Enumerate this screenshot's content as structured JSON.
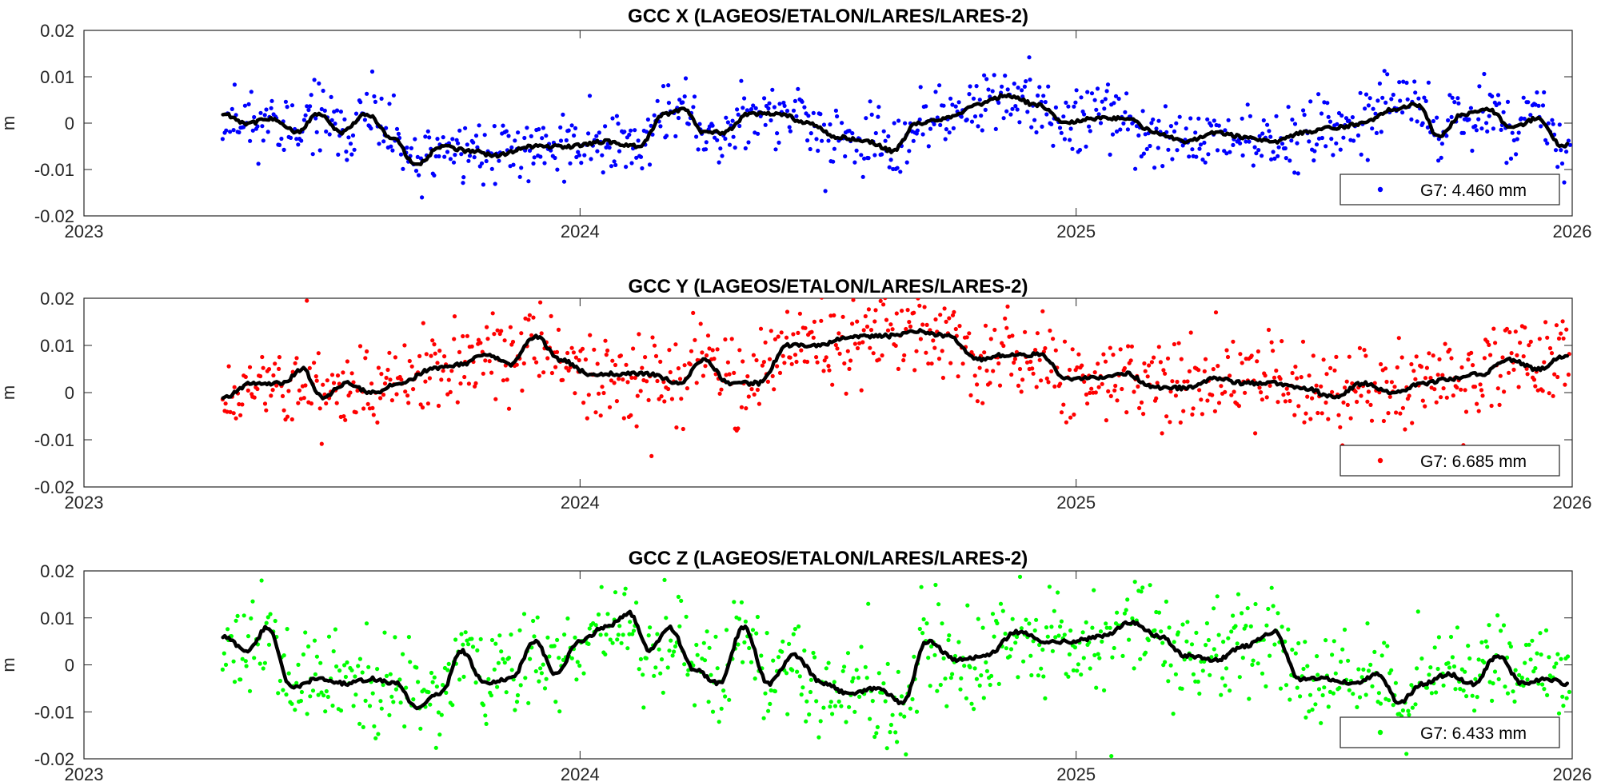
{
  "chart_data": [
    {
      "type": "scatter",
      "title": "GCC X (LAGEOS/ETALON/LARES/LARES-2)",
      "ylabel": "m",
      "xlabel": "",
      "xlim": [
        2023,
        2026
      ],
      "ylim": [
        -0.02,
        0.02
      ],
      "xticks": [
        "2023",
        "2024",
        "2025",
        "2026"
      ],
      "yticks": [
        "0.02",
        "0.01",
        "0",
        "-0.01",
        "-0.02"
      ],
      "legend": {
        "text": "G7: 4.460 mm",
        "placement": "bottom-right"
      },
      "point_color": "#0000ff",
      "smooth_color": "#000000",
      "x_start": 2023.28,
      "x_end": 2025.99,
      "series": [
        {
          "name": "G7: 4.460 mm",
          "kind": "points"
        },
        {
          "kind": "smoothed line",
          "anchors": [
            [
              2023.28,
              0.002
            ],
            [
              2023.33,
              0.0
            ],
            [
              2023.38,
              0.001
            ],
            [
              2023.43,
              -0.002
            ],
            [
              2023.47,
              0.002
            ],
            [
              2023.52,
              -0.002
            ],
            [
              2023.57,
              0.002
            ],
            [
              2023.62,
              -0.003
            ],
            [
              2023.67,
              -0.009
            ],
            [
              2023.72,
              -0.005
            ],
            [
              2023.78,
              -0.006
            ],
            [
              2023.83,
              -0.007
            ],
            [
              2023.9,
              -0.005
            ],
            [
              2023.98,
              -0.005
            ],
            [
              2024.05,
              -0.004
            ],
            [
              2024.12,
              -0.005
            ],
            [
              2024.17,
              0.002
            ],
            [
              2024.21,
              0.003
            ],
            [
              2024.25,
              -0.002
            ],
            [
              2024.29,
              -0.002
            ],
            [
              2024.34,
              0.002
            ],
            [
              2024.4,
              0.002
            ],
            [
              2024.46,
              0.0
            ],
            [
              2024.52,
              -0.003
            ],
            [
              2024.58,
              -0.004
            ],
            [
              2024.63,
              -0.006
            ],
            [
              2024.68,
              0.0
            ],
            [
              2024.74,
              0.001
            ],
            [
              2024.8,
              0.004
            ],
            [
              2024.86,
              0.006
            ],
            [
              2024.92,
              0.004
            ],
            [
              2024.98,
              0.0
            ],
            [
              2025.04,
              0.001
            ],
            [
              2025.1,
              0.001
            ],
            [
              2025.16,
              -0.002
            ],
            [
              2025.22,
              -0.004
            ],
            [
              2025.28,
              -0.002
            ],
            [
              2025.34,
              -0.003
            ],
            [
              2025.4,
              -0.004
            ],
            [
              2025.46,
              -0.002
            ],
            [
              2025.52,
              -0.001
            ],
            [
              2025.58,
              0.0
            ],
            [
              2025.64,
              0.003
            ],
            [
              2025.69,
              0.004
            ],
            [
              2025.73,
              -0.003
            ],
            [
              2025.78,
              0.002
            ],
            [
              2025.83,
              0.003
            ],
            [
              2025.88,
              -0.001
            ],
            [
              2025.93,
              0.001
            ],
            [
              2025.98,
              -0.005
            ],
            [
              2026.03,
              -0.001
            ],
            [
              2026.08,
              -0.003
            ]
          ]
        }
      ]
    },
    {
      "type": "scatter",
      "title": "GCC Y (LAGEOS/ETALON/LARES/LARES-2)",
      "ylabel": "m",
      "xlabel": "",
      "xlim": [
        2023,
        2026
      ],
      "ylim": [
        -0.02,
        0.02
      ],
      "xticks": [
        "2023",
        "2024",
        "2025",
        "2026"
      ],
      "yticks": [
        "0.02",
        "0.01",
        "0",
        "-0.01",
        "-0.02"
      ],
      "legend": {
        "text": "G7: 6.685 mm",
        "placement": "bottom-right"
      },
      "point_color": "#ff0000",
      "smooth_color": "#000000",
      "series": [
        {
          "name": "G7: 6.685 mm",
          "kind": "points"
        },
        {
          "kind": "smoothed line",
          "anchors": [
            [
              2023.28,
              -0.001
            ],
            [
              2023.34,
              0.002
            ],
            [
              2023.4,
              0.002
            ],
            [
              2023.44,
              0.005
            ],
            [
              2023.48,
              -0.001
            ],
            [
              2023.53,
              0.002
            ],
            [
              2023.58,
              0.0
            ],
            [
              2023.64,
              0.002
            ],
            [
              2023.7,
              0.005
            ],
            [
              2023.76,
              0.006
            ],
            [
              2023.81,
              0.008
            ],
            [
              2023.86,
              0.006
            ],
            [
              2023.91,
              0.012
            ],
            [
              2023.96,
              0.007
            ],
            [
              2024.02,
              0.004
            ],
            [
              2024.08,
              0.004
            ],
            [
              2024.14,
              0.004
            ],
            [
              2024.2,
              0.002
            ],
            [
              2024.25,
              0.007
            ],
            [
              2024.3,
              0.002
            ],
            [
              2024.36,
              0.002
            ],
            [
              2024.42,
              0.01
            ],
            [
              2024.48,
              0.01
            ],
            [
              2024.55,
              0.012
            ],
            [
              2024.62,
              0.012
            ],
            [
              2024.68,
              0.013
            ],
            [
              2024.74,
              0.012
            ],
            [
              2024.8,
              0.007
            ],
            [
              2024.86,
              0.008
            ],
            [
              2024.93,
              0.008
            ],
            [
              2024.98,
              0.003
            ],
            [
              2025.04,
              0.003
            ],
            [
              2025.1,
              0.004
            ],
            [
              2025.16,
              0.001
            ],
            [
              2025.22,
              0.001
            ],
            [
              2025.28,
              0.003
            ],
            [
              2025.34,
              0.002
            ],
            [
              2025.4,
              0.002
            ],
            [
              2025.46,
              0.001
            ],
            [
              2025.52,
              -0.001
            ],
            [
              2025.58,
              0.002
            ],
            [
              2025.64,
              0.0
            ],
            [
              2025.7,
              0.002
            ],
            [
              2025.76,
              0.003
            ],
            [
              2025.82,
              0.004
            ],
            [
              2025.87,
              0.007
            ],
            [
              2025.93,
              0.005
            ],
            [
              2025.99,
              0.008
            ],
            [
              2026.05,
              0.005
            ],
            [
              2026.1,
              0.007
            ]
          ]
        }
      ]
    },
    {
      "type": "scatter",
      "title": "GCC Z (LAGEOS/ETALON/LARES/LARES-2)",
      "ylabel": "m",
      "xlabel": "",
      "xlim": [
        2023,
        2026
      ],
      "ylim": [
        -0.02,
        0.02
      ],
      "xticks": [
        "2023",
        "2024",
        "2025",
        "2026"
      ],
      "yticks": [
        "0.02",
        "0.01",
        "0",
        "-0.01",
        "-0.02"
      ],
      "legend": {
        "text": "G7: 6.433 mm",
        "placement": "bottom-right"
      },
      "point_color": "#00ff00",
      "smooth_color": "#000000",
      "series": [
        {
          "name": "G7: 6.433 mm",
          "kind": "points"
        },
        {
          "kind": "smoothed line",
          "anchors": [
            [
              2023.28,
              0.006
            ],
            [
              2023.33,
              0.003
            ],
            [
              2023.37,
              0.008
            ],
            [
              2023.42,
              -0.005
            ],
            [
              2023.47,
              -0.003
            ],
            [
              2023.53,
              -0.004
            ],
            [
              2023.58,
              -0.003
            ],
            [
              2023.63,
              -0.004
            ],
            [
              2023.67,
              -0.009
            ],
            [
              2023.72,
              -0.006
            ],
            [
              2023.76,
              0.003
            ],
            [
              2023.81,
              -0.004
            ],
            [
              2023.86,
              -0.003
            ],
            [
              2023.91,
              0.005
            ],
            [
              2023.95,
              -0.002
            ],
            [
              2024.0,
              0.005
            ],
            [
              2024.05,
              0.008
            ],
            [
              2024.1,
              0.011
            ],
            [
              2024.14,
              0.003
            ],
            [
              2024.18,
              0.008
            ],
            [
              2024.23,
              -0.001
            ],
            [
              2024.28,
              -0.004
            ],
            [
              2024.33,
              0.008
            ],
            [
              2024.38,
              -0.004
            ],
            [
              2024.43,
              0.002
            ],
            [
              2024.49,
              -0.004
            ],
            [
              2024.54,
              -0.006
            ],
            [
              2024.6,
              -0.005
            ],
            [
              2024.65,
              -0.008
            ],
            [
              2024.7,
              0.005
            ],
            [
              2024.76,
              0.001
            ],
            [
              2024.82,
              0.002
            ],
            [
              2024.88,
              0.007
            ],
            [
              2024.94,
              0.005
            ],
            [
              2024.99,
              0.005
            ],
            [
              2025.05,
              0.006
            ],
            [
              2025.11,
              0.009
            ],
            [
              2025.17,
              0.006
            ],
            [
              2025.22,
              0.002
            ],
            [
              2025.28,
              0.001
            ],
            [
              2025.34,
              0.004
            ],
            [
              2025.4,
              0.007
            ],
            [
              2025.45,
              -0.003
            ],
            [
              2025.51,
              -0.003
            ],
            [
              2025.56,
              -0.004
            ],
            [
              2025.61,
              -0.002
            ],
            [
              2025.65,
              -0.008
            ],
            [
              2025.7,
              -0.004
            ],
            [
              2025.75,
              -0.002
            ],
            [
              2025.8,
              -0.004
            ],
            [
              2025.85,
              0.002
            ],
            [
              2025.9,
              -0.004
            ],
            [
              2025.95,
              -0.003
            ],
            [
              2025.99,
              -0.004
            ],
            [
              2026.04,
              -0.003
            ],
            [
              2026.09,
              -0.005
            ]
          ]
        }
      ]
    }
  ]
}
